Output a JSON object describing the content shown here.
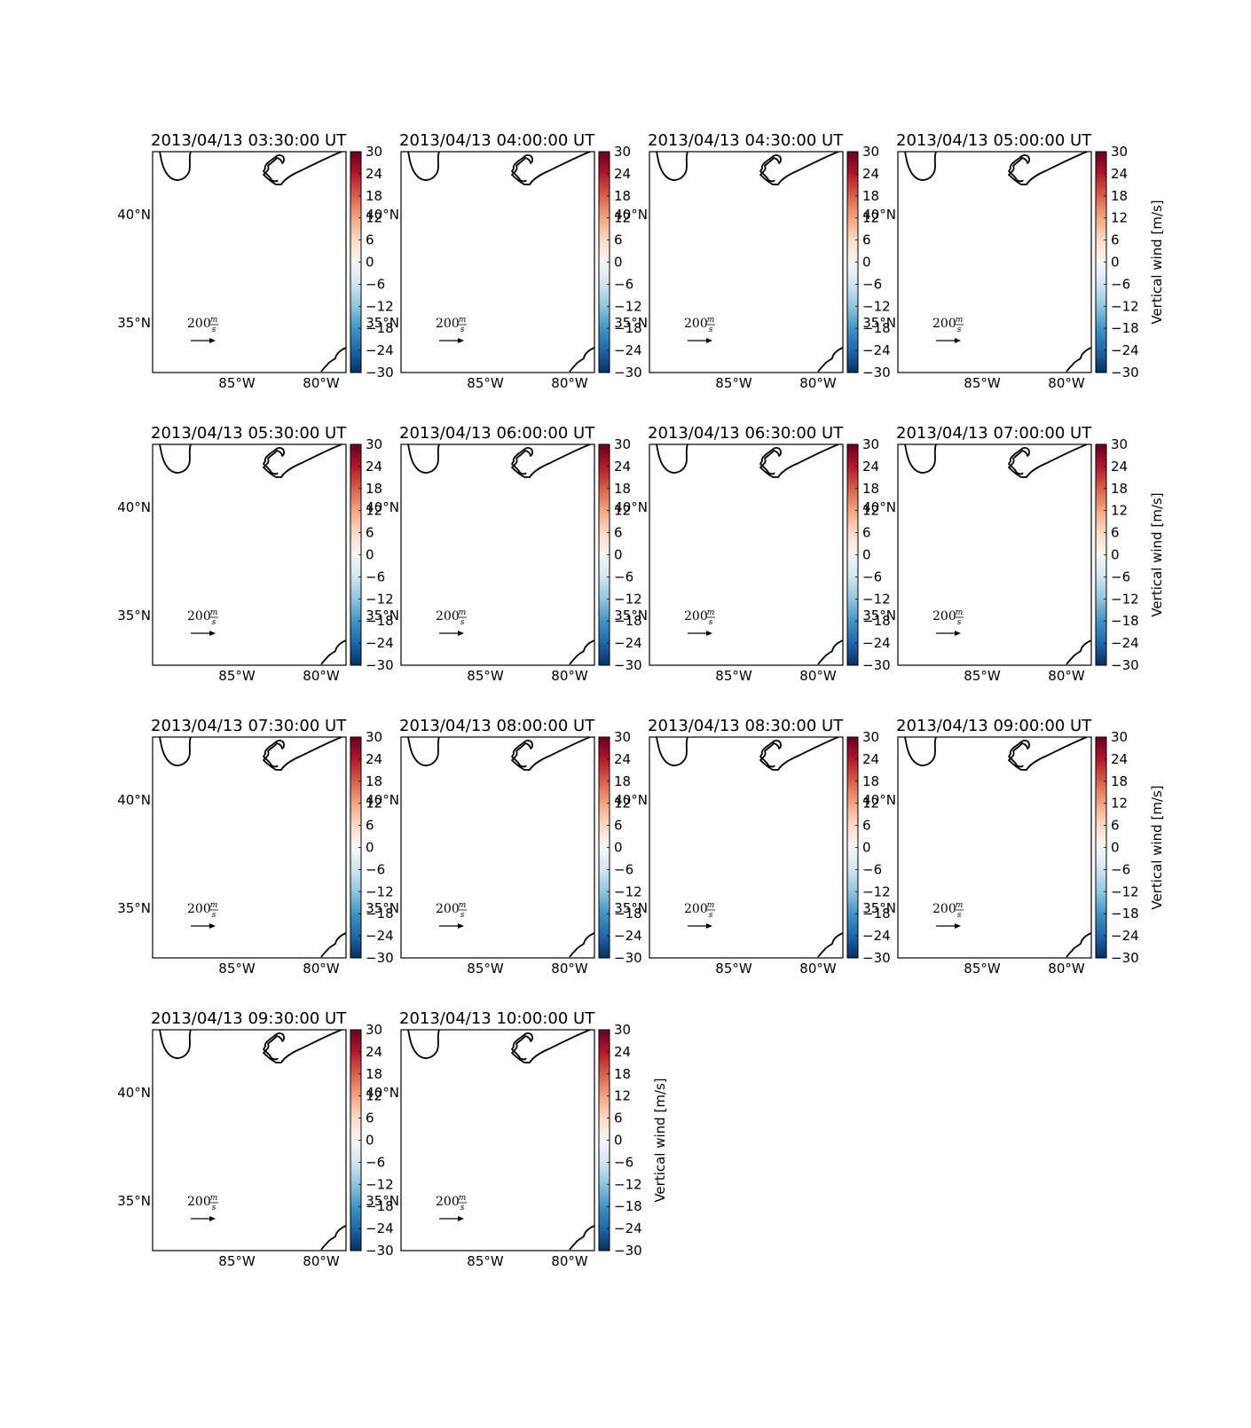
{
  "figure": {
    "panels": [
      {
        "title": "2013/04/13 03:30:00 UT"
      },
      {
        "title": "2013/04/13 04:00:00 UT"
      },
      {
        "title": "2013/04/13 04:30:00 UT"
      },
      {
        "title": "2013/04/13 05:00:00 UT"
      },
      {
        "title": "2013/04/13 05:30:00 UT"
      },
      {
        "title": "2013/04/13 06:00:00 UT"
      },
      {
        "title": "2013/04/13 06:30:00 UT"
      },
      {
        "title": "2013/04/13 07:00:00 UT"
      },
      {
        "title": "2013/04/13 07:30:00 UT"
      },
      {
        "title": "2013/04/13 08:00:00 UT"
      },
      {
        "title": "2013/04/13 08:30:00 UT"
      },
      {
        "title": "2013/04/13 09:00:00 UT"
      },
      {
        "title": "2013/04/13 09:30:00 UT"
      },
      {
        "title": "2013/04/13 10:00:00 UT"
      }
    ],
    "map": {
      "lat_labels": [
        "40°N",
        "35°N"
      ],
      "lon_labels": [
        "85°W",
        "80°W"
      ],
      "quiver_key": {
        "value": "200",
        "unit_num": "m",
        "unit_den": "s"
      }
    },
    "colorbar": {
      "label": "Vertical wind [m/s]",
      "ticks": [
        "30",
        "24",
        "18",
        "12",
        "6",
        "0",
        "−6",
        "−12",
        "−18",
        "−24",
        "−30"
      ],
      "range": [
        -30,
        30
      ],
      "colormap": [
        "#67001f",
        "#b2182b",
        "#d6604d",
        "#f4a582",
        "#fddbc7",
        "#f7f7f7",
        "#d1e5f0",
        "#92c5de",
        "#4393c3",
        "#2166ac",
        "#053061"
      ]
    }
  }
}
